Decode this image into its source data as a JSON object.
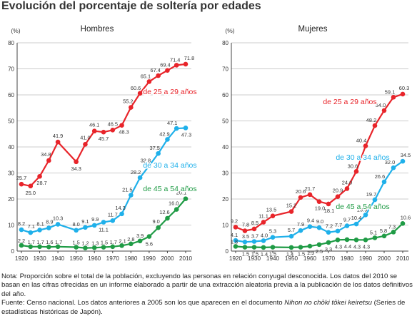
{
  "title": "Evolución del porcentaje de soltería por edades",
  "colors": {
    "series_25_29": "#e8242a",
    "series_30_34": "#1fb0ea",
    "series_45_54": "#1f9b45",
    "grid": "#bbbbbb",
    "axis": "#444444"
  },
  "chart_data": [
    {
      "type": "line",
      "title": "Hombres",
      "y_unit": "(%)",
      "ylim": [
        0,
        80
      ],
      "yticks": [
        0,
        10,
        20,
        30,
        40,
        50,
        60,
        70,
        80
      ],
      "x_ticks": [
        1920,
        1930,
        1940,
        1950,
        1960,
        1970,
        1980,
        1990,
        2000,
        2010
      ],
      "grid": true,
      "x": [
        1920,
        1925,
        1930,
        1935,
        1940,
        1950,
        1955,
        1960,
        1965,
        1970,
        1975,
        1980,
        1985,
        1990,
        1995,
        2000,
        2005,
        2010
      ],
      "series": [
        {
          "name": "de 25 a 29 años",
          "color": "#e8242a",
          "label_position": "right-middle",
          "values": [
            25.7,
            25.0,
            28.7,
            34.8,
            41.9,
            34.3,
            41.0,
            46.1,
            45.7,
            46.5,
            48.3,
            55.2,
            60.6,
            65.1,
            67.4,
            69.4,
            71.4,
            71.8
          ],
          "labels": [
            "25.7",
            "25.0",
            "28.7",
            "34.8",
            "41.9",
            "34.3",
            "41.0",
            "46.1",
            "45.7",
            "46.5",
            "48.3",
            "55.2",
            "60.6",
            "65.1",
            "67.4",
            "69.4",
            "71.4",
            "71.8"
          ]
        },
        {
          "name": "de 30 a 34 años",
          "color": "#1fb0ea",
          "label_position": "right-middle",
          "values": [
            8.2,
            7.1,
            8.1,
            8.9,
            10.3,
            8.0,
            9.1,
            9.9,
            11.1,
            11.7,
            14.3,
            21.5,
            28.2,
            32.8,
            37.5,
            42.9,
            47.1,
            47.3
          ],
          "labels": [
            "8.2",
            "7.1",
            "8.1",
            "8.9",
            "10.3",
            "8.0",
            "9.1",
            "9.9",
            "11.1",
            "11.7",
            "14.3",
            "21.5",
            "28.2",
            "32.8",
            "37.5",
            "42.9",
            "47.1",
            "47.3"
          ]
        },
        {
          "name": "de 45 a 54 años",
          "color": "#1f9b45",
          "label_position": "right-lower",
          "values": [
            2.2,
            1.7,
            1.7,
            1.6,
            1.7,
            1.5,
            1.2,
            1.3,
            1.5,
            1.7,
            2.1,
            2.8,
            3.9,
            5.6,
            9.0,
            12.6,
            16.0,
            20.1
          ],
          "labels": [
            "2.2",
            "1.7",
            "1.7",
            "1.6",
            "1.7",
            "1.5",
            "1.2",
            "1.3",
            "1.5",
            "1.7",
            "2.1",
            "2.8",
            "3.9",
            "5.6",
            "9.0",
            "12.6",
            "16.0",
            "20.1"
          ]
        }
      ]
    },
    {
      "type": "line",
      "title": "Mujeres",
      "y_unit": "(%)",
      "ylim": [
        0,
        80
      ],
      "yticks": [
        0,
        10,
        20,
        30,
        40,
        50,
        60,
        70,
        80
      ],
      "x_ticks": [
        1920,
        1930,
        1940,
        1950,
        1960,
        1970,
        1980,
        1990,
        2000,
        2010
      ],
      "grid": true,
      "x": [
        1920,
        1925,
        1930,
        1935,
        1940,
        1950,
        1955,
        1960,
        1965,
        1970,
        1975,
        1980,
        1985,
        1990,
        1995,
        2000,
        2005,
        2010
      ],
      "series": [
        {
          "name": "de 25 a 29 años",
          "color": "#e8242a",
          "label_position": "middle",
          "values": [
            9.2,
            7.8,
            8.5,
            11.1,
            13.5,
            15.2,
            20.6,
            21.7,
            19.0,
            18.1,
            20.9,
            24.0,
            30.6,
            40.4,
            48.2,
            54.0,
            59.1,
            60.3
          ],
          "labels": [
            "9.2",
            "7.8",
            "8.5",
            "11.1",
            "13.5",
            "15.2",
            "20.6",
            "21.7",
            "19.0",
            "18.1",
            "20.9",
            "24.0",
            "30.6",
            "40.4",
            "48.2",
            "54.0",
            "59.1",
            "60.3"
          ]
        },
        {
          "name": "de 30 a 34 años",
          "color": "#1fb0ea",
          "label_position": "right-middle",
          "values": [
            4.1,
            3.5,
            3.7,
            4.0,
            5.3,
            5.7,
            7.9,
            9.4,
            9.0,
            7.2,
            7.7,
            9.7,
            10.4,
            13.9,
            19.7,
            26.6,
            32.0,
            34.5
          ],
          "labels": [
            "4.1",
            "3.5",
            "3.7",
            "4.0",
            "5.3",
            "5.7",
            "7.9",
            "9.4",
            "9.0",
            "7.2",
            "7.7",
            "9.7",
            "10.4",
            "13.9",
            "19.7",
            "26.6",
            "32.0",
            "34.5"
          ]
        },
        {
          "name": "de 45 a 54 años",
          "color": "#1f9b45",
          "label_position": "right-lower",
          "values": [
            1.8,
            1.5,
            1.5,
            1.4,
            1.5,
            1.4,
            1.5,
            1.9,
            2.5,
            3.3,
            4.3,
            4.4,
            4.3,
            4.3,
            5.1,
            5.8,
            7.3,
            10.6
          ],
          "labels": [
            "1.8",
            "1.5",
            "1.5",
            "1.4",
            "1.5",
            "1.4",
            "1.5",
            "1.9",
            "2.5",
            "3.3",
            "4.3",
            "4.4",
            "4.3",
            "4.3",
            "5.1",
            "5.8",
            "7.3",
            "10.6"
          ]
        }
      ]
    }
  ],
  "notes": {
    "note": "Nota: Proporción sobre el total de la población, excluyendo las personas en relación conyugal desconocida. Los datos del 2010 se basan en las cifras ofrecidas en un informe elaborado a partir de una extracción aleatoria previa a la publicación de los datos definitivos del año.",
    "source_before": "Fuente: Censo nacional. Los datos anteriores a 2005 son los que aparecen en el documento ",
    "source_title": "Nihon no chōki tōkei keiretsu",
    "source_after": " (Series de estadísticas históricas de Japón)."
  }
}
